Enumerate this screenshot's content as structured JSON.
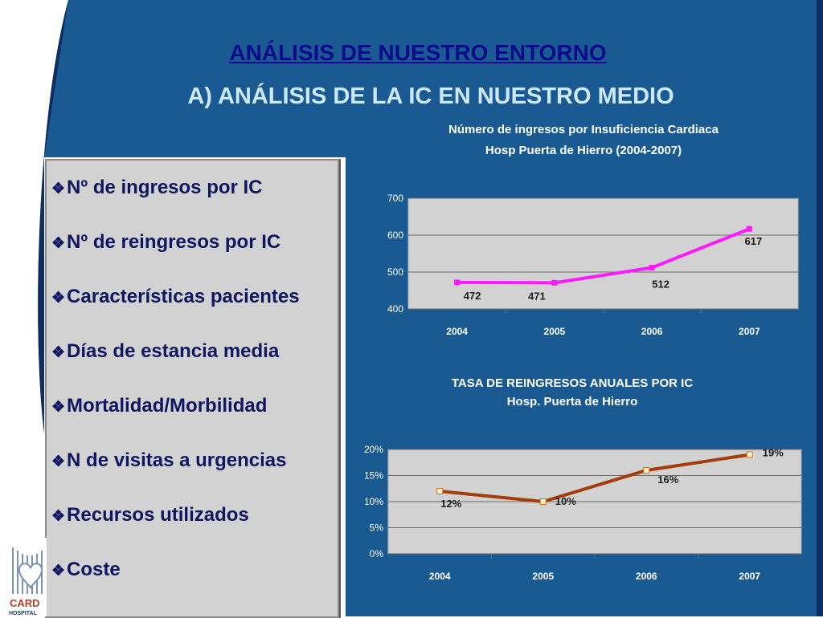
{
  "slide": {
    "title": "ANÁLISIS DE NUESTRO ENTORNO",
    "subtitle": "A) ANÁLISIS DE LA IC EN NUESTRO MEDIO",
    "bullets": [
      "Nº de ingresos por IC",
      "Nº de reingresos por IC",
      "Características pacientes",
      "Días de estancia media",
      "Mortalidad/Morbilidad",
      "N de visitas a urgencias",
      "Recursos utilizados",
      "Coste"
    ],
    "logo": {
      "text_1": "CARD",
      "text_2": "HOSPITAL"
    },
    "colors": {
      "background": "#1a5a92",
      "accent_dark": "#0d2d63",
      "title": "#0a0a8a",
      "subtitle": "#cfe8f6"
    }
  },
  "chart_data": [
    {
      "type": "line",
      "title_lines": [
        "Número de ingresos por Insuficiencia Cardiaca",
        "Hosp Puerta de Hierro (2004-2007)"
      ],
      "categories": [
        "2004",
        "2005",
        "2006",
        "2007"
      ],
      "series": [
        {
          "values": [
            472,
            471,
            512,
            617
          ],
          "color": "#ff19ff"
        }
      ],
      "data_labels": [
        "472",
        "471",
        "512",
        "617"
      ],
      "y_ticks": [
        "400",
        "500",
        "600",
        "700"
      ],
      "ylim": [
        400,
        700
      ],
      "y_step": 100,
      "grid": true,
      "legend": "none"
    },
    {
      "type": "line",
      "title_lines": [
        "TASA DE REINGRESOS ANUALES POR IC",
        "Hosp. Puerta de Hierro"
      ],
      "categories": [
        "2004",
        "2005",
        "2006",
        "2007"
      ],
      "series": [
        {
          "values": [
            12,
            10,
            16,
            19
          ],
          "unit": "%",
          "color": "#a33d0a"
        }
      ],
      "data_labels": [
        "12%",
        "10%",
        "16%",
        "19%"
      ],
      "y_ticks": [
        "0%",
        "5%",
        "10%",
        "15%",
        "20%"
      ],
      "ylim": [
        0,
        20
      ],
      "y_step": 5,
      "grid": true,
      "legend": "none"
    }
  ]
}
